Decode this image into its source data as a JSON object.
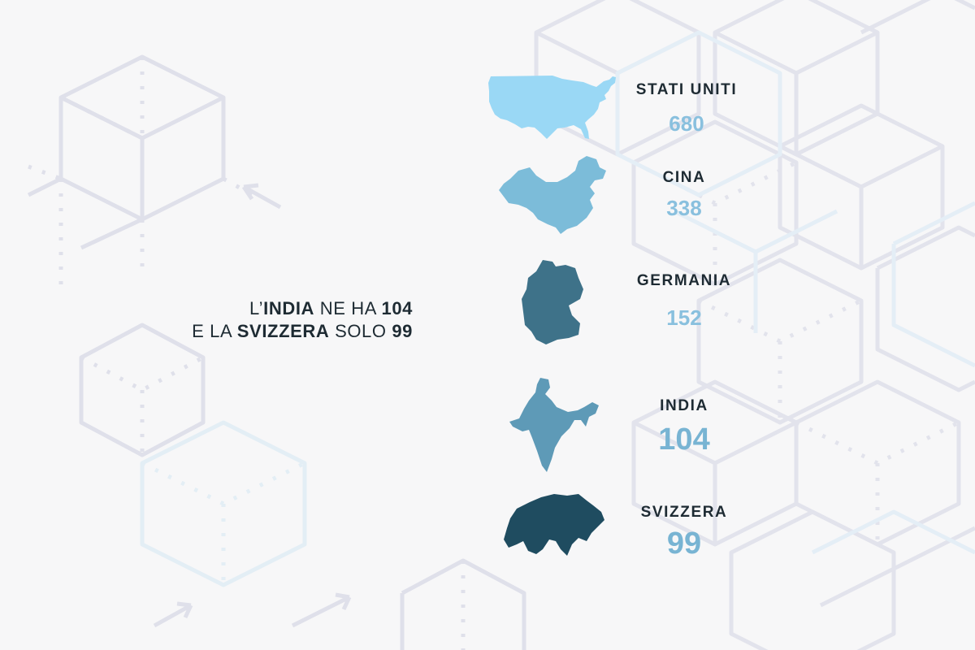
{
  "headline": {
    "line1": {
      "prefix": "L’",
      "country": "INDIA",
      "middle": " NE HA ",
      "value": "104"
    },
    "line2": {
      "prefix": "E LA ",
      "country": "SVIZZERA",
      "middle": " SOLO ",
      "value": "99"
    }
  },
  "countries": [
    {
      "name": "STATI UNITI",
      "value": "680",
      "color": "#9ad8f5"
    },
    {
      "name": "CINA",
      "value": "338",
      "color": "#7cbcd9"
    },
    {
      "name": "GERMANIA",
      "value": "152",
      "color": "#3e7289"
    },
    {
      "name": "INDIA",
      "value": "104",
      "color": "#5e9ab7"
    },
    {
      "name": "SVIZZERA",
      "value": "99",
      "color": "#1f4c60"
    }
  ],
  "colors": {
    "background": "#f7f7f8",
    "text_dark": "#1e2b33",
    "value_blue": "#89c0de",
    "grid_lines": "#dfe0ea"
  }
}
